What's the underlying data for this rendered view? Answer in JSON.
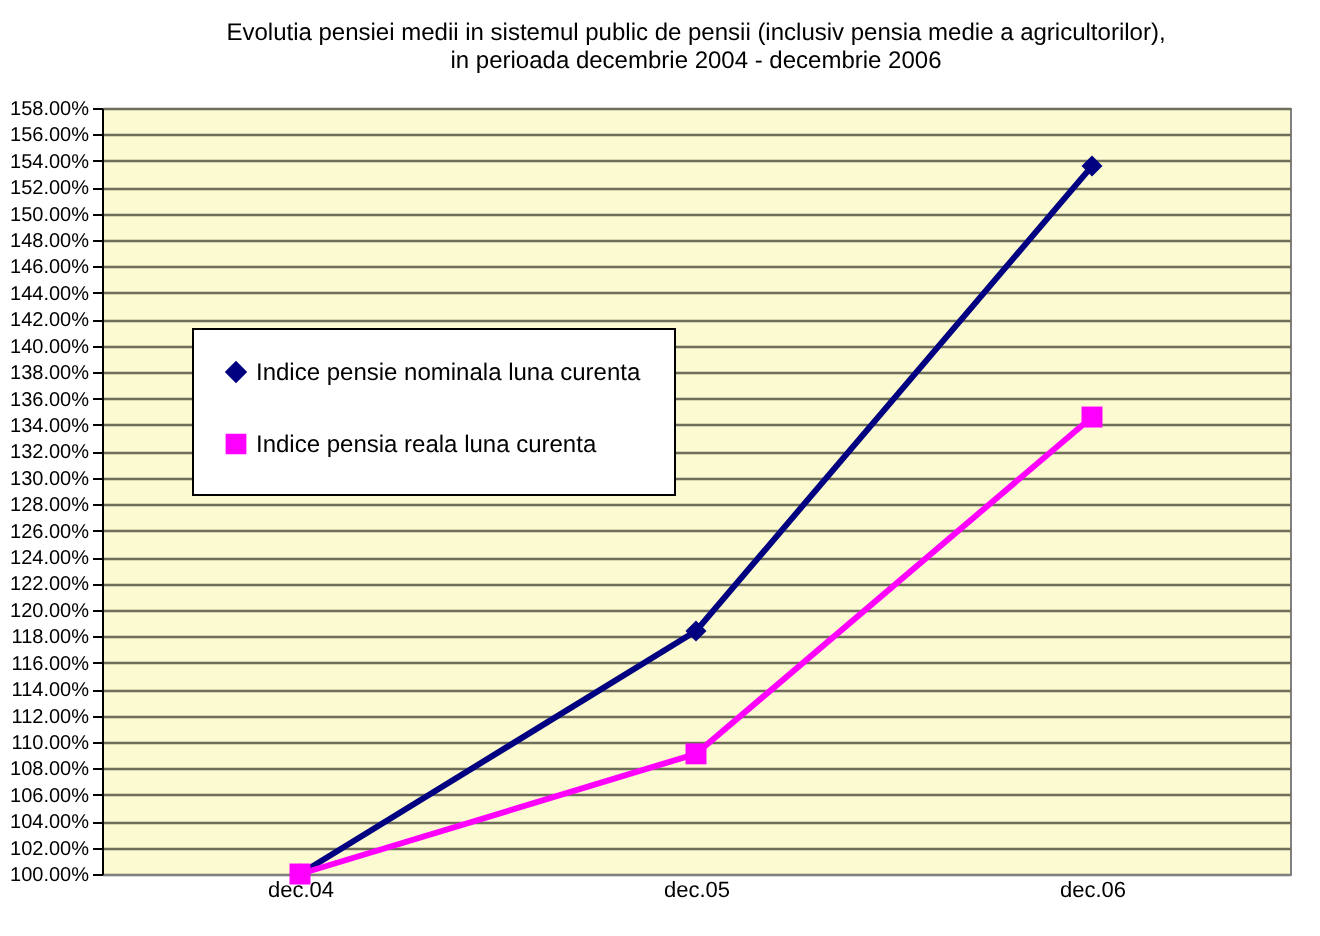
{
  "chart_data": {
    "type": "line",
    "title": "Evolutia pensiei medii in sistemul public de pensii (inclusiv pensia medie a agricultorilor),\nin perioada decembrie 2004 - decembrie 2006",
    "categories": [
      "dec.04",
      "dec.05",
      "dec.06"
    ],
    "series": [
      {
        "name": "Indice pensie nominala luna curenta",
        "color": "#000080",
        "marker": "diamond",
        "values": [
          100,
          118.4,
          153.6
        ]
      },
      {
        "name": "Indice pensia reala luna curenta",
        "color": "#ff00ff",
        "marker": "square",
        "values": [
          100,
          109.1,
          134.6
        ]
      }
    ],
    "ylim": [
      100,
      158
    ],
    "yticks": [
      {
        "value": 100,
        "label": "100.00%"
      },
      {
        "value": 102,
        "label": "102.00%"
      },
      {
        "value": 104,
        "label": "104.00%"
      },
      {
        "value": 106,
        "label": "106.00%"
      },
      {
        "value": 108,
        "label": "108.00%"
      },
      {
        "value": 110,
        "label": "110.00%"
      },
      {
        "value": 112,
        "label": "112.00%"
      },
      {
        "value": 114,
        "label": "114.00%"
      },
      {
        "value": 116,
        "label": "116.00%"
      },
      {
        "value": 118,
        "label": "118.00%"
      },
      {
        "value": 120,
        "label": "120.00%"
      },
      {
        "value": 122,
        "label": "122.00%"
      },
      {
        "value": 124,
        "label": "124.00%"
      },
      {
        "value": 126,
        "label": "126.00%"
      },
      {
        "value": 128,
        "label": "128.00%"
      },
      {
        "value": 130,
        "label": "130.00%"
      },
      {
        "value": 132,
        "label": "132.00%"
      },
      {
        "value": 134,
        "label": "134.00%"
      },
      {
        "value": 136,
        "label": "136.00%"
      },
      {
        "value": 138,
        "label": "138.00%"
      },
      {
        "value": 140,
        "label": "140.00%"
      },
      {
        "value": 142,
        "label": "142.00%"
      },
      {
        "value": 144,
        "label": "144.00%"
      },
      {
        "value": 146,
        "label": "146.00%"
      },
      {
        "value": 148,
        "label": "148.00%"
      },
      {
        "value": 150,
        "label": "150.00%"
      },
      {
        "value": 152,
        "label": "152.00%"
      },
      {
        "value": 154,
        "label": "154.00%"
      },
      {
        "value": 156,
        "label": "156.00%"
      },
      {
        "value": 158,
        "label": "158.00%"
      }
    ],
    "grid": "y",
    "legend": "left",
    "line_style": "solid"
  }
}
